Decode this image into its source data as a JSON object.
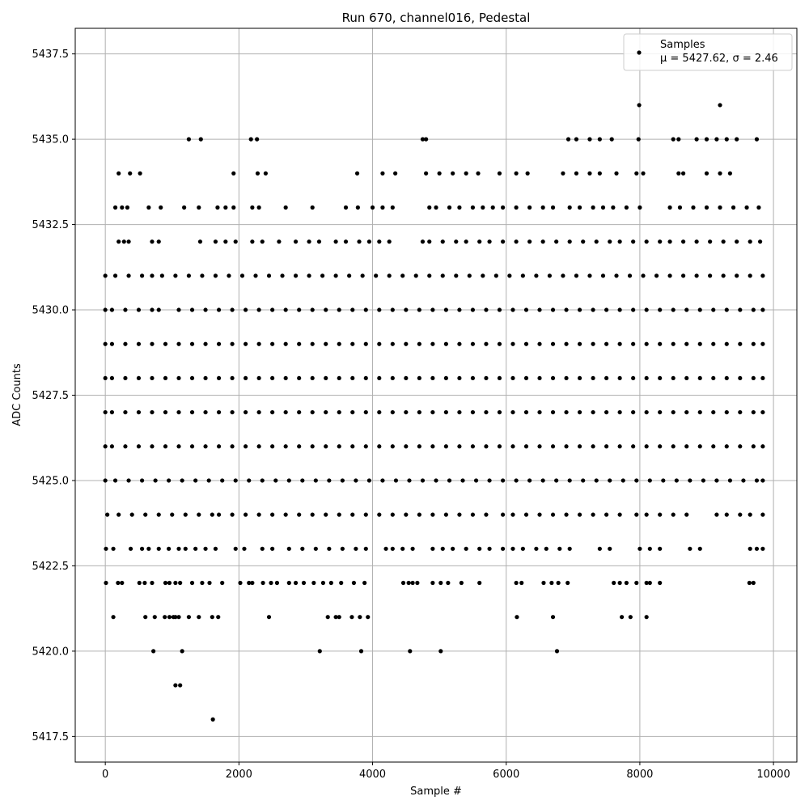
{
  "chart_data": {
    "type": "scatter",
    "title": "Run 670, channel016, Pedestal",
    "xlabel": "Sample #",
    "ylabel": "ADC Counts",
    "xlim": [
      -450,
      10350
    ],
    "ylim": [
      5416.75,
      5438.25
    ],
    "x_ticks": [
      0,
      2000,
      4000,
      6000,
      8000,
      10000
    ],
    "y_ticks": [
      5417.5,
      5420.0,
      5422.5,
      5425.0,
      5427.5,
      5430.0,
      5432.5,
      5435.0,
      5437.5
    ],
    "x_tick_labels": [
      "0",
      "2000",
      "4000",
      "6000",
      "8000",
      "10000"
    ],
    "y_tick_labels": [
      "5417.5",
      "5420.0",
      "5422.5",
      "5425.0",
      "5427.5",
      "5430.0",
      "5432.5",
      "5435.0",
      "5437.5"
    ],
    "grid": true,
    "legend": {
      "position": "top-right",
      "label": "Samples",
      "stats_label": "μ = 5427.62, σ = 2.46"
    },
    "marker_color": "#000000",
    "series": [
      {
        "name": "Samples",
        "mean": 5427.62,
        "sigma": 2.46,
        "sample_count_approx": 9840,
        "levels": [
          {
            "y": 5418,
            "x": [
              1610
            ]
          },
          {
            "y": 5419,
            "x": [
              1050,
              1120
            ]
          },
          {
            "y": 5420,
            "x": [
              720,
              1150,
              3210,
              3830,
              4560,
              5020,
              6760
            ]
          },
          {
            "y": 5421,
            "x": [
              120,
              600,
              740,
              890,
              960,
              1020,
              1050,
              1100,
              1250,
              1400,
              1600,
              1690,
              2450,
              3330,
              3450,
              3500,
              3690,
              3810,
              3930,
              6160,
              6700,
              7730,
              7860,
              8100
            ]
          },
          {
            "y": 5422,
            "x": [
              10,
              190,
              250,
              510,
              590,
              700,
              900,
              960,
              1050,
              1120,
              1300,
              1450,
              1560,
              1750,
              2020,
              2150,
              2200,
              2360,
              2480,
              2570,
              2750,
              2850,
              2970,
              3120,
              3260,
              3380,
              3530,
              3720,
              3880,
              4460,
              4540,
              4600,
              4670,
              4900,
              5020,
              5130,
              5330,
              5600,
              6150,
              6230,
              6560,
              6680,
              6780,
              6920,
              7610,
              7700,
              7800,
              7950,
              8100,
              8150,
              8300,
              9640,
              9700
            ]
          },
          {
            "y": 5423,
            "x": [
              10,
              120,
              380,
              550,
              650,
              800,
              950,
              1100,
              1200,
              1350,
              1500,
              1650,
              1950,
              2080,
              2350,
              2500,
              2750,
              2950,
              3150,
              3350,
              3550,
              3750,
              3900,
              4200,
              4300,
              4450,
              4600,
              4900,
              5050,
              5200,
              5400,
              5600,
              5750,
              5950,
              6100,
              6250,
              6450,
              6600,
              6800,
              6950,
              7400,
              7550,
              8000,
              8150,
              8300,
              8750,
              8900,
              9650,
              9750,
              9840
            ]
          },
          {
            "y": 5424,
            "x": [
              30,
              200,
              400,
              600,
              800,
              1000,
              1200,
              1400,
              1600,
              1700,
              1900,
              2100,
              2300,
              2500,
              2700,
              2900,
              3100,
              3300,
              3500,
              3700,
              3900,
              4100,
              4300,
              4500,
              4700,
              4900,
              5100,
              5300,
              5500,
              5700,
              5950,
              6100,
              6300,
              6500,
              6700,
              6900,
              7100,
              7300,
              7500,
              7700,
              7950,
              8100,
              8300,
              8500,
              8700,
              9150,
              9300,
              9500,
              9650,
              9840
            ]
          },
          {
            "y": 5425,
            "x": [
              0,
              150,
              350,
              550,
              750,
              950,
              1150,
              1350,
              1550,
              1750,
              1950,
              2150,
              2350,
              2550,
              2750,
              2950,
              3150,
              3350,
              3550,
              3750,
              3950,
              4150,
              4350,
              4550,
              4750,
              4950,
              5150,
              5350,
              5550,
              5750,
              5950,
              6150,
              6350,
              6550,
              6750,
              6950,
              7150,
              7350,
              7550,
              7750,
              7950,
              8150,
              8350,
              8550,
              8750,
              8950,
              9150,
              9350,
              9550,
              9750,
              9840
            ]
          },
          {
            "y": 5426,
            "x": [
              0,
              100,
              300,
              500,
              700,
              900,
              1100,
              1300,
              1500,
              1700,
              1900,
              2100,
              2300,
              2500,
              2700,
              2900,
              3100,
              3300,
              3500,
              3700,
              3900,
              4100,
              4300,
              4500,
              4700,
              4900,
              5100,
              5300,
              5500,
              5700,
              5900,
              6100,
              6300,
              6500,
              6700,
              6900,
              7100,
              7300,
              7500,
              7700,
              7900,
              8100,
              8300,
              8500,
              8700,
              8900,
              9100,
              9300,
              9500,
              9700,
              9840
            ]
          },
          {
            "y": 5427,
            "x": [
              0,
              100,
              300,
              500,
              700,
              900,
              1100,
              1300,
              1500,
              1700,
              1900,
              2100,
              2300,
              2500,
              2700,
              2900,
              3100,
              3300,
              3500,
              3700,
              3900,
              4100,
              4300,
              4500,
              4700,
              4900,
              5100,
              5300,
              5500,
              5700,
              5900,
              6100,
              6300,
              6500,
              6700,
              6900,
              7100,
              7300,
              7500,
              7700,
              7900,
              8100,
              8300,
              8500,
              8700,
              8900,
              9100,
              9300,
              9500,
              9700,
              9840
            ]
          },
          {
            "y": 5428,
            "x": [
              0,
              100,
              300,
              500,
              700,
              900,
              1100,
              1300,
              1500,
              1700,
              1900,
              2100,
              2300,
              2500,
              2700,
              2900,
              3100,
              3300,
              3500,
              3700,
              3900,
              4100,
              4300,
              4500,
              4700,
              4900,
              5100,
              5300,
              5500,
              5700,
              5900,
              6100,
              6300,
              6500,
              6700,
              6900,
              7100,
              7300,
              7500,
              7700,
              7900,
              8100,
              8300,
              8500,
              8700,
              8900,
              9100,
              9300,
              9500,
              9700,
              9840
            ]
          },
          {
            "y": 5429,
            "x": [
              0,
              100,
              300,
              500,
              700,
              900,
              1100,
              1300,
              1500,
              1700,
              1900,
              2100,
              2300,
              2500,
              2700,
              2900,
              3100,
              3300,
              3500,
              3700,
              3900,
              4100,
              4300,
              4500,
              4700,
              4900,
              5100,
              5300,
              5500,
              5700,
              5900,
              6100,
              6300,
              6500,
              6700,
              6900,
              7100,
              7300,
              7500,
              7700,
              7900,
              8100,
              8300,
              8500,
              8700,
              8900,
              9100,
              9300,
              9500,
              9700,
              9840
            ]
          },
          {
            "y": 5430,
            "x": [
              0,
              100,
              300,
              500,
              700,
              800,
              1100,
              1300,
              1500,
              1700,
              1900,
              2100,
              2300,
              2500,
              2700,
              2900,
              3100,
              3300,
              3500,
              3700,
              3900,
              4100,
              4300,
              4500,
              4700,
              4900,
              5100,
              5300,
              5500,
              5700,
              5900,
              6100,
              6300,
              6500,
              6700,
              6900,
              7100,
              7300,
              7500,
              7700,
              7900,
              8100,
              8300,
              8500,
              8700,
              8900,
              9100,
              9300,
              9500,
              9700,
              9840
            ]
          },
          {
            "y": 5431,
            "x": [
              0,
              150,
              350,
              550,
              700,
              850,
              1050,
              1250,
              1450,
              1650,
              1850,
              2050,
              2250,
              2450,
              2650,
              2850,
              3050,
              3250,
              3450,
              3650,
              3850,
              4050,
              4250,
              4450,
              4650,
              4850,
              5050,
              5250,
              5450,
              5650,
              5850,
              6050,
              6250,
              6450,
              6650,
              6850,
              7050,
              7250,
              7450,
              7650,
              7850,
              8050,
              8250,
              8450,
              8650,
              8850,
              9050,
              9250,
              9450,
              9650,
              9840
            ]
          },
          {
            "y": 5432,
            "x": [
              200,
              280,
              350,
              700,
              800,
              1420,
              1650,
              1800,
              1950,
              2200,
              2350,
              2600,
              2850,
              3050,
              3200,
              3450,
              3600,
              3800,
              3950,
              4100,
              4250,
              4750,
              4850,
              5050,
              5250,
              5400,
              5600,
              5750,
              5950,
              6150,
              6350,
              6550,
              6750,
              6950,
              7150,
              7350,
              7550,
              7700,
              7900,
              8100,
              8300,
              8450,
              8650,
              8850,
              9050,
              9250,
              9450,
              9650,
              9800
            ]
          },
          {
            "y": 5433,
            "x": [
              150,
              250,
              330,
              650,
              830,
              1180,
              1400,
              1680,
              1800,
              1920,
              2200,
              2300,
              2700,
              3100,
              3600,
              3780,
              4000,
              4150,
              4300,
              4850,
              4950,
              5150,
              5300,
              5500,
              5650,
              5800,
              5950,
              6150,
              6350,
              6550,
              6700,
              6950,
              7100,
              7300,
              7450,
              7600,
              7800,
              8000,
              8450,
              8600,
              8800,
              9000,
              9200,
              9400,
              9600,
              9780
            ]
          },
          {
            "y": 5434,
            "x": [
              200,
              370,
              520,
              1920,
              2280,
              2400,
              3770,
              4150,
              4340,
              4800,
              5000,
              5200,
              5400,
              5580,
              5900,
              6150,
              6320,
              6850,
              7050,
              7250,
              7400,
              7650,
              7950,
              8050,
              8580,
              8650,
              9000,
              9200,
              9350
            ]
          },
          {
            "y": 5435,
            "x": [
              1250,
              1430,
              2180,
              2270,
              4750,
              4800,
              6930,
              7050,
              7250,
              7400,
              7580,
              7980,
              8500,
              8580,
              8850,
              9000,
              9150,
              9300,
              9450,
              9750
            ]
          },
          {
            "y": 5436,
            "x": [
              7990,
              9200
            ]
          }
        ]
      }
    ]
  }
}
